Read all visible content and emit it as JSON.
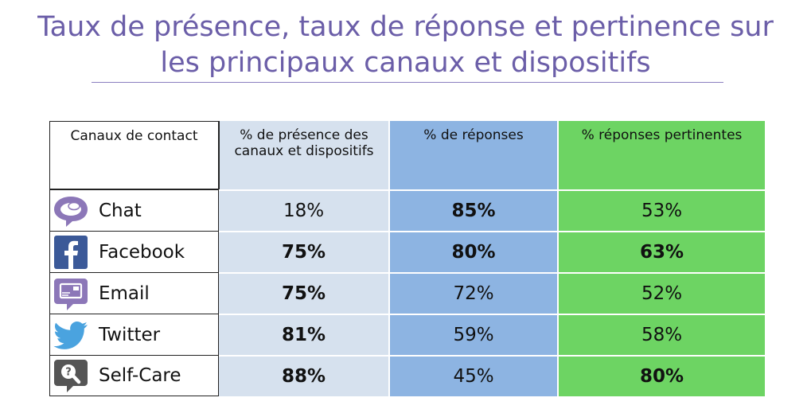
{
  "title_line1": "Taux de présence, taux de réponse et pertinence sur",
  "title_line2": "les principaux canaux et dispositifs",
  "colors": {
    "title": "#6b5ea8",
    "presence_col": "#d6e1ee",
    "reponses_col": "#8db4e2",
    "pertinentes_col": "#6dd463"
  },
  "chart_data": {
    "type": "table",
    "columns": [
      "Canaux de contact",
      "% de présence des canaux et dispositifs",
      "% de réponses",
      "% réponses pertinentes"
    ],
    "rows": [
      {
        "channel": "Chat",
        "icon": "chat-bubble-icon",
        "presence": "18%",
        "reponses": "85%",
        "pertinentes": "53%",
        "bold": [
          false,
          true,
          false
        ]
      },
      {
        "channel": "Facebook",
        "icon": "facebook-icon",
        "presence": "75%",
        "reponses": "80%",
        "pertinentes": "63%",
        "bold": [
          true,
          true,
          true
        ]
      },
      {
        "channel": "Email",
        "icon": "email-icon",
        "presence": "75%",
        "reponses": "72%",
        "pertinentes": "52%",
        "bold": [
          true,
          false,
          false
        ]
      },
      {
        "channel": "Twitter",
        "icon": "twitter-bird-icon",
        "presence": "81%",
        "reponses": "59%",
        "pertinentes": "58%",
        "bold": [
          true,
          false,
          false
        ]
      },
      {
        "channel": "Self-Care",
        "icon": "self-care-search-icon",
        "presence": "88%",
        "reponses": "45%",
        "pertinentes": "80%",
        "bold": [
          true,
          false,
          true
        ]
      }
    ]
  }
}
